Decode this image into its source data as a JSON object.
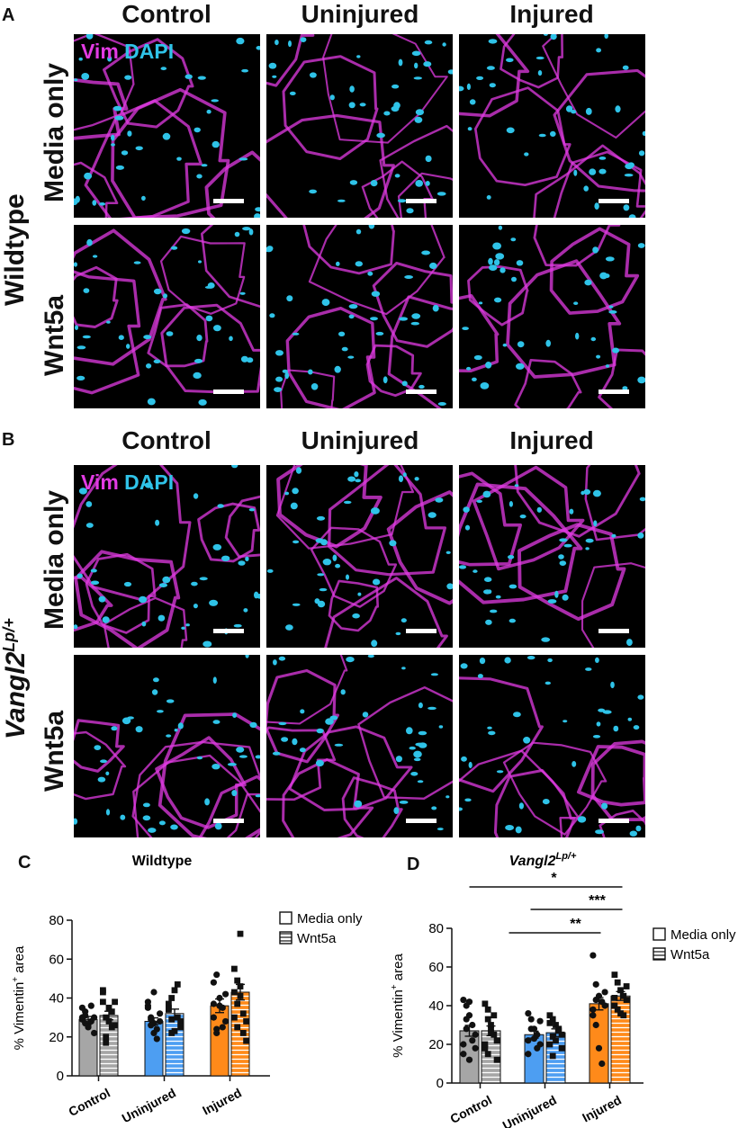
{
  "panels": [
    {
      "letter": "A",
      "group_label": "Wildtype",
      "group_italic": false,
      "columns": [
        "Control",
        "Uninjured",
        "Injured"
      ],
      "rows": [
        "Media only",
        "Wnt5a"
      ],
      "stain": {
        "vim": "Vim",
        "dapi": "DAPI"
      }
    },
    {
      "letter": "B",
      "group_label": "Vangl2",
      "group_sup": "Lp/+",
      "group_italic": true,
      "columns": [
        "Control",
        "Uninjured",
        "Injured"
      ],
      "rows": [
        "Media only",
        "Wnt5a"
      ],
      "stain": {
        "vim": "Vim",
        "dapi": "DAPI"
      }
    }
  ],
  "colors": {
    "vimentin": "#e23be3",
    "dapi": "#2fc3e8",
    "control": "#a6a6a6",
    "uninjured": "#4d9ef2",
    "injured": "#ff8a1a"
  },
  "chart_data": [
    {
      "type": "bar",
      "panel": "C",
      "title": "Wildtype",
      "title_italic": false,
      "ylabel_prefix": "% Vimentin",
      "ylabel_sup": "+",
      "ylabel_suffix": " area",
      "ylim": [
        0,
        80
      ],
      "yticks": [
        0,
        20,
        40,
        60,
        80
      ],
      "categories": [
        "Control",
        "Uninjured",
        "Injured"
      ],
      "legend": [
        "Media only",
        "Wnt5a"
      ],
      "legend_position": "top-right",
      "series": [
        {
          "name": "Media only",
          "values": [
            29,
            28,
            36
          ],
          "errors": [
            1.5,
            1.8,
            3.5
          ]
        },
        {
          "name": "Wnt5a",
          "values": [
            31,
            32,
            43
          ],
          "errors": [
            2.2,
            2.3,
            4.0
          ]
        }
      ],
      "points": [
        [
          29,
          33,
          26,
          36,
          30,
          35,
          31,
          25,
          28,
          22,
          30,
          27
        ],
        [
          44,
          30,
          35,
          25,
          38,
          43,
          20,
          28,
          33,
          26,
          38,
          17
        ],
        [
          36,
          30,
          22,
          24,
          28,
          35,
          29,
          27,
          19,
          32,
          38,
          26,
          43
        ],
        [
          37,
          40,
          44,
          30,
          25,
          34,
          29,
          23,
          47,
          28,
          35,
          22
        ],
        [
          48,
          52,
          40,
          35,
          28,
          30,
          24,
          36,
          25,
          42,
          37,
          22
        ],
        [
          55,
          49,
          46,
          32,
          28,
          43,
          37,
          41,
          22,
          18,
          30,
          25,
          73
        ]
      ],
      "significance": []
    },
    {
      "type": "bar",
      "panel": "D",
      "title": "Vangl2",
      "title_sup": "Lp/+",
      "title_italic": true,
      "ylabel_prefix": "% Vimentin",
      "ylabel_sup": "+",
      "ylabel_suffix": " area",
      "ylim": [
        0,
        80
      ],
      "yticks": [
        0,
        20,
        40,
        60,
        80
      ],
      "categories": [
        "Control",
        "Uninjured",
        "Injured"
      ],
      "legend": [
        "Media only",
        "Wnt5a"
      ],
      "legend_position": "top-right",
      "series": [
        {
          "name": "Media only",
          "values": [
            27,
            25,
            41
          ],
          "errors": [
            2.8,
            1.8,
            3.2
          ]
        },
        {
          "name": "Wnt5a",
          "values": [
            27,
            26,
            45
          ],
          "errors": [
            2.5,
            2.0,
            2.3
          ]
        }
      ],
      "points": [
        [
          43,
          40,
          35,
          30,
          25,
          20,
          28,
          12,
          22,
          18,
          15,
          33,
          42
        ],
        [
          41,
          38,
          30,
          25,
          22,
          18,
          15,
          28,
          35,
          12,
          20,
          33,
          26
        ],
        [
          36,
          33,
          28,
          25,
          20,
          15,
          28,
          23,
          18,
          32,
          22
        ],
        [
          35,
          33,
          30,
          27,
          25,
          20,
          14,
          22,
          28,
          18,
          31,
          24
        ],
        [
          66,
          51,
          45,
          42,
          40,
          35,
          30,
          18,
          10,
          47,
          38,
          43
        ],
        [
          56,
          52,
          48,
          45,
          43,
          40,
          38,
          36,
          35,
          50,
          44
        ]
      ],
      "significance": [
        {
          "from_bar": 0,
          "to_bar": 5,
          "label": "*"
        },
        {
          "from_bar": 3,
          "to_bar": 5,
          "label": "***"
        },
        {
          "from_bar": 2,
          "to_bar": 4,
          "label": "**"
        }
      ]
    }
  ]
}
